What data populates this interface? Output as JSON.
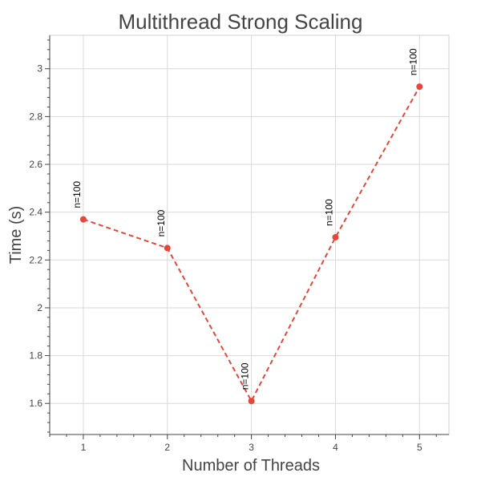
{
  "chart_data": {
    "type": "line",
    "title": "Multithread Strong Scaling",
    "xlabel": "Number of Threads",
    "ylabel": "Time (s)",
    "xlim": [
      0.6,
      5.35
    ],
    "ylim": [
      1.47,
      3.14
    ],
    "x_ticks": [
      1,
      2,
      3,
      4,
      5
    ],
    "x_tick_labels": [
      "1",
      "2",
      "3",
      "4",
      "5"
    ],
    "y_ticks": [
      1.6,
      1.8,
      2.0,
      2.2,
      2.4,
      2.6,
      2.8,
      3.0
    ],
    "y_tick_labels": [
      "1.6",
      "1.8",
      "2",
      "2.2",
      "2.4",
      "2.6",
      "2.8",
      "3"
    ],
    "grid": true,
    "line_style": "dashed",
    "color": "#e5473b",
    "series": [
      {
        "x": [
          1,
          2,
          3,
          4,
          5
        ],
        "values": [
          2.37,
          2.25,
          1.61,
          2.295,
          2.925
        ],
        "labels": [
          "n=100",
          "n=100",
          "n=100",
          "n=100",
          "n=100"
        ]
      }
    ]
  }
}
